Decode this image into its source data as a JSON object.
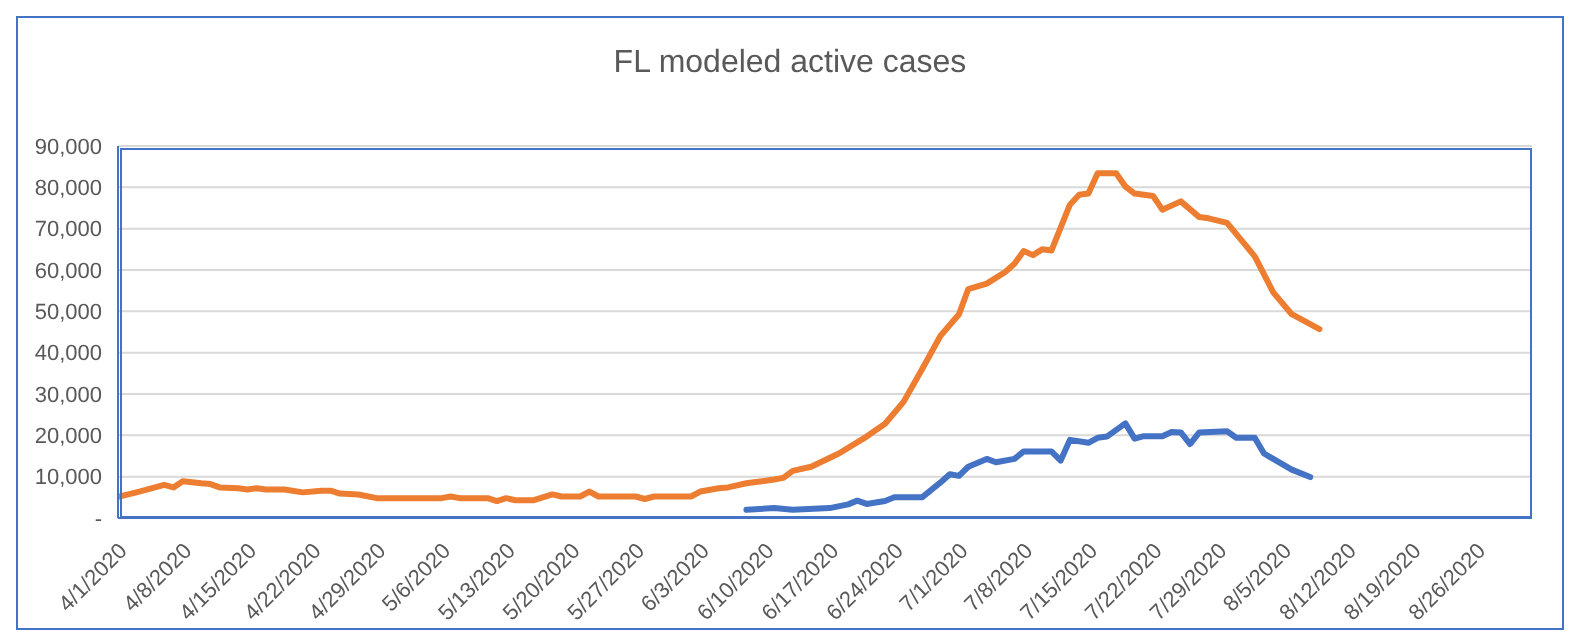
{
  "chart_data": {
    "type": "line",
    "title": "FL modeled active cases",
    "xlim": [
      "2020-04-01",
      "2020-09-01"
    ],
    "xticks": [
      {
        "value": "2020-04-01",
        "label": "4/1/2020"
      },
      {
        "value": "2020-04-08",
        "label": "4/8/2020"
      },
      {
        "value": "2020-04-15",
        "label": "4/15/2020"
      },
      {
        "value": "2020-04-22",
        "label": "4/22/2020"
      },
      {
        "value": "2020-04-29",
        "label": "4/29/2020"
      },
      {
        "value": "2020-05-06",
        "label": "5/6/2020"
      },
      {
        "value": "2020-05-13",
        "label": "5/13/2020"
      },
      {
        "value": "2020-05-20",
        "label": "5/20/2020"
      },
      {
        "value": "2020-05-27",
        "label": "5/27/2020"
      },
      {
        "value": "2020-06-03",
        "label": "6/3/2020"
      },
      {
        "value": "2020-06-10",
        "label": "6/10/2020"
      },
      {
        "value": "2020-06-17",
        "label": "6/17/2020"
      },
      {
        "value": "2020-06-24",
        "label": "6/24/2020"
      },
      {
        "value": "2020-07-01",
        "label": "7/1/2020"
      },
      {
        "value": "2020-07-08",
        "label": "7/8/2020"
      },
      {
        "value": "2020-07-15",
        "label": "7/15/2020"
      },
      {
        "value": "2020-07-22",
        "label": "7/22/2020"
      },
      {
        "value": "2020-07-29",
        "label": "7/29/2020"
      },
      {
        "value": "2020-08-05",
        "label": "8/5/2020"
      },
      {
        "value": "2020-08-12",
        "label": "8/12/2020"
      },
      {
        "value": "2020-08-19",
        "label": "8/19/2020"
      },
      {
        "value": "2020-08-26",
        "label": "8/26/2020"
      }
    ],
    "ylim": [
      0,
      90000
    ],
    "yticks": [
      {
        "value": 0,
        "label": "-"
      },
      {
        "value": 10000,
        "label": "10,000"
      },
      {
        "value": 20000,
        "label": "20,000"
      },
      {
        "value": 30000,
        "label": "30,000"
      },
      {
        "value": 40000,
        "label": "40,000"
      },
      {
        "value": 50000,
        "label": "50,000"
      },
      {
        "value": 60000,
        "label": "60,000"
      },
      {
        "value": 70000,
        "label": "70,000"
      },
      {
        "value": 80000,
        "label": "80,000"
      },
      {
        "value": 90000,
        "label": "90,000"
      }
    ],
    "grid": "y",
    "marker": "none",
    "line_style": "solid",
    "series": [
      {
        "color": "#ed7d31",
        "x": [
          "2020-04-01",
          "2020-04-03",
          "2020-04-06",
          "2020-04-07",
          "2020-04-08",
          "2020-04-10",
          "2020-04-11",
          "2020-04-12",
          "2020-04-14",
          "2020-04-15",
          "2020-04-16",
          "2020-04-17",
          "2020-04-19",
          "2020-04-21",
          "2020-04-23",
          "2020-04-24",
          "2020-04-25",
          "2020-04-27",
          "2020-04-29",
          "2020-05-06",
          "2020-05-07",
          "2020-05-08",
          "2020-05-11",
          "2020-05-12",
          "2020-05-13",
          "2020-05-14",
          "2020-05-16",
          "2020-05-18",
          "2020-05-19",
          "2020-05-21",
          "2020-05-22",
          "2020-05-23",
          "2020-05-27",
          "2020-05-28",
          "2020-05-29",
          "2020-06-02",
          "2020-06-03",
          "2020-06-05",
          "2020-06-06",
          "2020-06-08",
          "2020-06-09",
          "2020-06-11",
          "2020-06-12",
          "2020-06-13",
          "2020-06-15",
          "2020-06-18",
          "2020-06-21",
          "2020-06-23",
          "2020-06-25",
          "2020-06-27",
          "2020-06-29",
          "2020-07-01",
          "2020-07-02",
          "2020-07-04",
          "2020-07-06",
          "2020-07-07",
          "2020-07-08",
          "2020-07-09",
          "2020-07-10",
          "2020-07-11",
          "2020-07-13",
          "2020-07-14",
          "2020-07-15",
          "2020-07-16",
          "2020-07-18",
          "2020-07-19",
          "2020-07-20",
          "2020-07-22",
          "2020-07-23",
          "2020-07-25",
          "2020-07-27",
          "2020-07-28",
          "2020-07-30",
          "2020-08-01",
          "2020-08-02",
          "2020-08-04",
          "2020-08-06",
          "2020-08-09"
        ],
        "values": [
          5100,
          6200,
          8000,
          7400,
          8900,
          8400,
          8200,
          7400,
          7200,
          6900,
          7200,
          6900,
          6900,
          6200,
          6600,
          6600,
          5900,
          5700,
          4800,
          4800,
          5200,
          4800,
          4800,
          4100,
          4800,
          4300,
          4300,
          5700,
          5200,
          5200,
          6400,
          5200,
          5200,
          4600,
          5200,
          5200,
          6400,
          7200,
          7400,
          8400,
          8700,
          9300,
          9700,
          11400,
          12400,
          15600,
          19700,
          22800,
          28100,
          36000,
          44100,
          49300,
          55400,
          56700,
          59500,
          61500,
          64600,
          63600,
          65000,
          64700,
          75800,
          78200,
          78500,
          83400,
          83400,
          80200,
          78500,
          77900,
          74600,
          76600,
          72800,
          72500,
          71400,
          66000,
          63300,
          54600,
          49300,
          45700
        ]
      },
      {
        "color": "#4472c4",
        "x": [
          "2020-06-08",
          "2020-06-11",
          "2020-06-13",
          "2020-06-17",
          "2020-06-19",
          "2020-06-20",
          "2020-06-21",
          "2020-06-23",
          "2020-06-24",
          "2020-06-27",
          "2020-06-29",
          "2020-06-30",
          "2020-07-01",
          "2020-07-02",
          "2020-07-04",
          "2020-07-05",
          "2020-07-07",
          "2020-07-08",
          "2020-07-11",
          "2020-07-12",
          "2020-07-13",
          "2020-07-15",
          "2020-07-16",
          "2020-07-17",
          "2020-07-19",
          "2020-07-20",
          "2020-07-21",
          "2020-07-23",
          "2020-07-24",
          "2020-07-25",
          "2020-07-26",
          "2020-07-27",
          "2020-07-30",
          "2020-07-31",
          "2020-08-02",
          "2020-08-03",
          "2020-08-06",
          "2020-08-08"
        ],
        "values": [
          2000,
          2400,
          2000,
          2400,
          3300,
          4200,
          3400,
          4100,
          5000,
          5000,
          8600,
          10600,
          10200,
          12400,
          14300,
          13500,
          14300,
          16100,
          16100,
          13900,
          18900,
          18200,
          19400,
          19700,
          22900,
          19200,
          19800,
          19800,
          20800,
          20700,
          17900,
          20700,
          21000,
          19400,
          19400,
          15600,
          11700,
          9900
        ]
      }
    ]
  }
}
